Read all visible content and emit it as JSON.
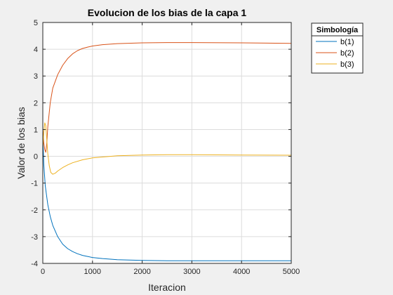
{
  "chart_data": {
    "type": "line",
    "title": "Evolucion de los bias de la capa 1",
    "xlabel": "Iteracion",
    "ylabel": "Valor de los bias",
    "xlim": [
      0,
      5000
    ],
    "ylim": [
      -4,
      5
    ],
    "xticks": [
      0,
      1000,
      2000,
      3000,
      4000,
      5000
    ],
    "yticks": [
      -4,
      -3,
      -2,
      -1,
      0,
      1,
      2,
      3,
      4,
      5
    ],
    "grid": true,
    "legend": {
      "title": "Simbología",
      "placement": "outside-top-right"
    },
    "series": [
      {
        "name": "b(1)",
        "color": "#0072BD",
        "x": [
          0,
          20,
          50,
          100,
          150,
          200,
          300,
          400,
          500,
          600,
          700,
          800,
          900,
          1000,
          1200,
          1500,
          2000,
          2500,
          3000,
          4000,
          5000
        ],
        "y": [
          0.8,
          -0.3,
          -1.1,
          -1.8,
          -2.25,
          -2.58,
          -3.0,
          -3.28,
          -3.45,
          -3.56,
          -3.64,
          -3.7,
          -3.74,
          -3.78,
          -3.82,
          -3.86,
          -3.89,
          -3.9,
          -3.9,
          -3.9,
          -3.9
        ]
      },
      {
        "name": "b(2)",
        "color": "#D95319",
        "x": [
          0,
          20,
          40,
          60,
          80,
          100,
          150,
          200,
          300,
          400,
          500,
          600,
          700,
          800,
          900,
          1000,
          1200,
          1500,
          2000,
          2500,
          3000,
          4000,
          5000
        ],
        "y": [
          1.0,
          0.5,
          0.25,
          0.15,
          0.5,
          1.1,
          2.0,
          2.55,
          3.05,
          3.4,
          3.65,
          3.83,
          3.95,
          4.03,
          4.08,
          4.12,
          4.17,
          4.21,
          4.24,
          4.25,
          4.25,
          4.24,
          4.22
        ]
      },
      {
        "name": "b(3)",
        "color": "#EDB120",
        "x": [
          0,
          20,
          40,
          60,
          80,
          100,
          130,
          160,
          200,
          250,
          300,
          400,
          500,
          600,
          800,
          1000,
          1500,
          2000,
          2500,
          3000,
          4000,
          5000
        ],
        "y": [
          0.3,
          0.9,
          1.25,
          1.15,
          0.6,
          0.1,
          -0.35,
          -0.6,
          -0.67,
          -0.63,
          -0.55,
          -0.42,
          -0.32,
          -0.24,
          -0.13,
          -0.06,
          0.02,
          0.05,
          0.06,
          0.06,
          0.05,
          0.04
        ]
      }
    ]
  }
}
